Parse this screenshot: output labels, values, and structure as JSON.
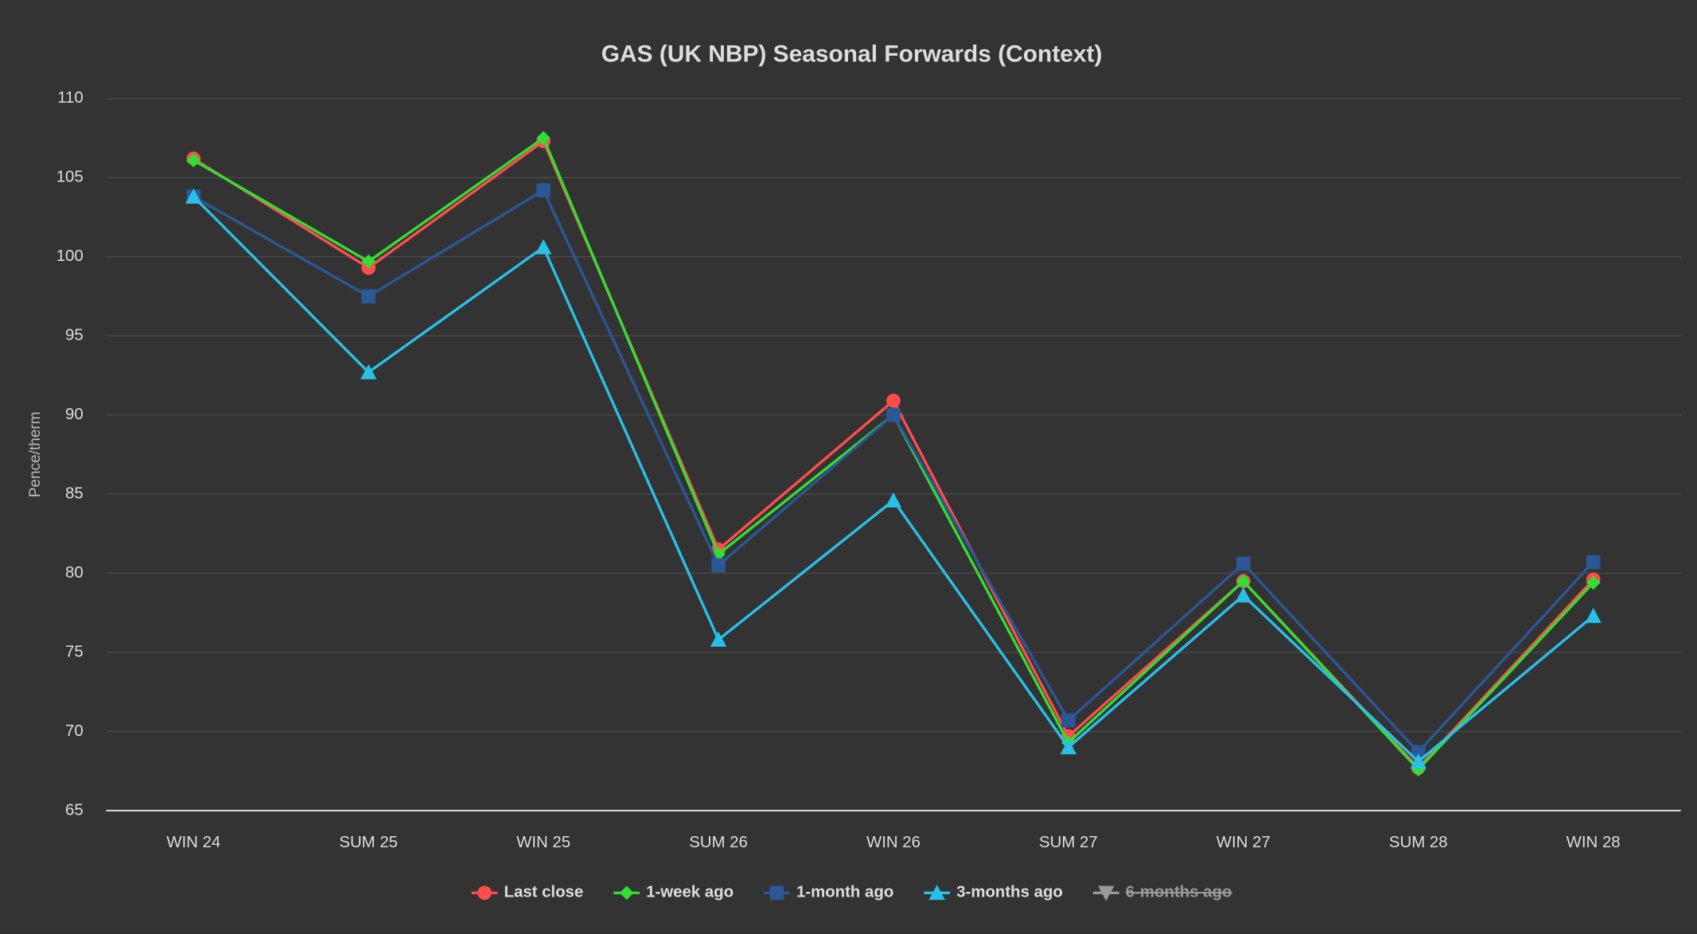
{
  "chart_data": {
    "type": "line",
    "title": "GAS (UK NBP) Seasonal Forwards (Context)",
    "y_label": "Pence/therm",
    "categories": [
      "WIN 24",
      "SUM 25",
      "WIN 25",
      "SUM 26",
      "WIN 26",
      "SUM 27",
      "WIN 27",
      "SUM 28",
      "WIN 28"
    ],
    "series": [
      {
        "name": "Last close",
        "color": "#ff4d4d",
        "marker": "circle",
        "values": [
          106.2,
          99.3,
          107.3,
          81.5,
          90.9,
          69.7,
          79.5,
          67.7,
          79.6
        ]
      },
      {
        "name": "1-week ago",
        "color": "#33dd33",
        "marker": "diamond",
        "values": [
          106.1,
          99.7,
          107.5,
          81.2,
          90.0,
          69.3,
          79.5,
          67.6,
          79.4
        ]
      },
      {
        "name": "1-month ago",
        "color": "#2b5797",
        "marker": "square",
        "values": [
          103.8,
          97.5,
          104.2,
          80.5,
          90.0,
          70.7,
          80.6,
          68.7,
          80.7
        ]
      },
      {
        "name": "3-months ago",
        "color": "#29c0e8",
        "marker": "triangle",
        "values": [
          103.8,
          92.7,
          100.6,
          75.8,
          84.6,
          69.0,
          78.6,
          68.1,
          77.3
        ]
      },
      {
        "name": "6-months ago",
        "color": "#999999",
        "marker": "triangle-down",
        "hidden": true,
        "values": [
          null,
          null,
          null,
          null,
          null,
          null,
          null,
          null,
          null
        ]
      }
    ],
    "ylim": [
      65,
      110
    ],
    "yticks": [
      65,
      70,
      75,
      80,
      85,
      90,
      95,
      100,
      105,
      110
    ],
    "grid": true,
    "legend": "bottom"
  }
}
